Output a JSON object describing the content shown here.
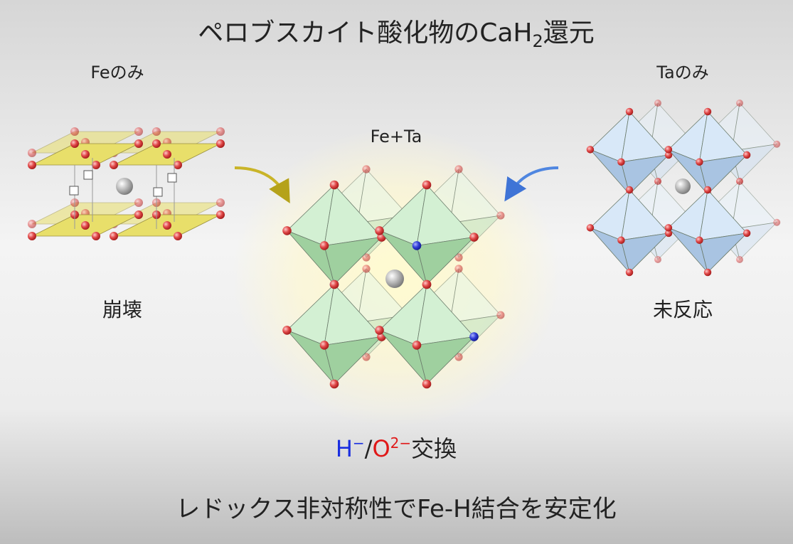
{
  "title": {
    "main": "ペロブスカイト酸化物のCaH",
    "subscript": "2",
    "suffix": "還元"
  },
  "panels": [
    {
      "label": "Feのみ",
      "result": "崩壊"
    },
    {
      "label": "Fe+Ta"
    },
    {
      "label": "Taのみ",
      "result": "未反応"
    }
  ],
  "exchange": {
    "h": "H",
    "h_charge": "−",
    "slash": "/",
    "o": "O",
    "o_charge": "2−",
    "text": "交換"
  },
  "conclusion": "レドックス非対称性でFe-H結合を安定化"
}
